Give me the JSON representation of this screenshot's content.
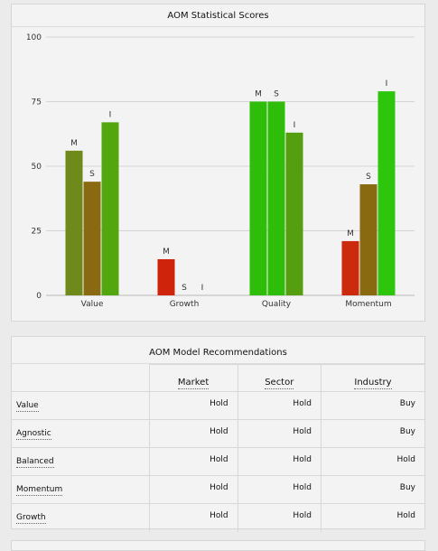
{
  "chart_data": {
    "type": "bar",
    "title": "AOM Statistical Scores",
    "categories": [
      "Value",
      "Growth",
      "Quality",
      "Momentum"
    ],
    "series": [
      {
        "name": "M",
        "values": [
          56,
          14,
          75,
          21
        ]
      },
      {
        "name": "S",
        "values": [
          44,
          0,
          75,
          43
        ]
      },
      {
        "name": "I",
        "values": [
          67,
          0,
          63,
          79
        ]
      }
    ],
    "yticks": [
      0,
      25,
      50,
      75,
      100
    ],
    "ylim": [
      0,
      100
    ],
    "grid": true,
    "colors": {
      "Value": [
        "#6e8a1a",
        "#8a6a10",
        "#52a70f"
      ],
      "Growth": [
        "#d0230c",
        "#d0230c",
        "#d0230c"
      ],
      "Quality": [
        "#2ebe0a",
        "#2ebe0a",
        "#549e10"
      ],
      "Momentum": [
        "#cc2a0c",
        "#8a6a10",
        "#2ec60c"
      ]
    }
  },
  "recommendations": {
    "title": "AOM Model Recommendations",
    "columns": [
      "Market",
      "Sector",
      "Industry"
    ],
    "rows": [
      {
        "label": "Value",
        "values": [
          "Hold",
          "Hold",
          "Buy"
        ]
      },
      {
        "label": "Agnostic",
        "values": [
          "Hold",
          "Hold",
          "Buy"
        ]
      },
      {
        "label": "Balanced",
        "values": [
          "Hold",
          "Hold",
          "Hold"
        ]
      },
      {
        "label": "Momentum",
        "values": [
          "Hold",
          "Hold",
          "Buy"
        ]
      },
      {
        "label": "Growth",
        "values": [
          "Hold",
          "Hold",
          "Hold"
        ]
      }
    ]
  }
}
